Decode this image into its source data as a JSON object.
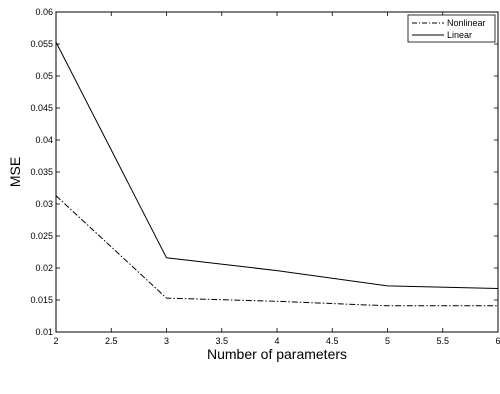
{
  "chart_data": {
    "type": "line",
    "xlabel": "Number of parameters",
    "ylabel": "MSE",
    "xlim": [
      2,
      6
    ],
    "ylim": [
      0.01,
      0.06
    ],
    "grid": false,
    "legend_position": "top-right",
    "x_ticks": [
      "2",
      "2.5",
      "3",
      "3.5",
      "4",
      "4.5",
      "5",
      "5.5",
      "6"
    ],
    "y_ticks": [
      "0.01",
      "0.015",
      "0.02",
      "0.025",
      "0.03",
      "0.035",
      "0.04",
      "0.045",
      "0.05",
      "0.055",
      "0.06"
    ],
    "x": [
      2,
      3,
      4,
      5,
      6
    ],
    "series": [
      {
        "name": "Nonlinear",
        "values": [
          0.0313,
          0.0153,
          0.0148,
          0.0141,
          0.0141
        ],
        "style": "dash-dot",
        "color": "#000000"
      },
      {
        "name": "Linear",
        "values": [
          0.0553,
          0.0216,
          0.0196,
          0.0172,
          0.0168
        ],
        "style": "solid",
        "color": "#000000"
      }
    ]
  }
}
